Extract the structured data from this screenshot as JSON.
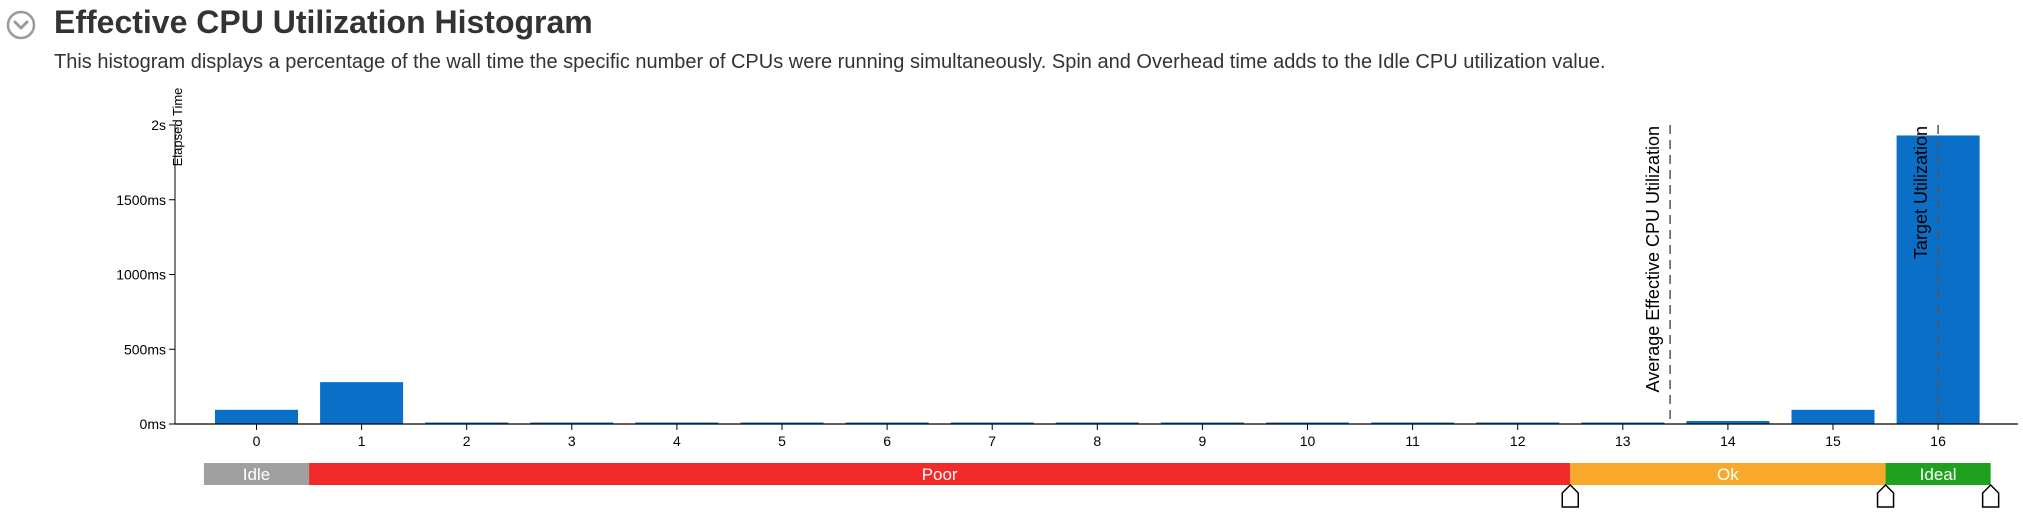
{
  "header": {
    "title": "Effective CPU Utilization Histogram",
    "description": "This histogram displays a percentage of the wall time the specific number of CPUs were running simultaneously. Spin and Overhead time adds to the Idle CPU utilization value."
  },
  "chart_data": {
    "type": "bar",
    "ylabel": "Elapsed Time",
    "y_unit": "ms",
    "ylim": [
      0,
      2000
    ],
    "y_ticks": [
      {
        "value": 0,
        "label": "0ms"
      },
      {
        "value": 500,
        "label": "500ms"
      },
      {
        "value": 1000,
        "label": "1000ms"
      },
      {
        "value": 1500,
        "label": "1500ms"
      },
      {
        "value": 2000,
        "label": "2s"
      }
    ],
    "categories": [
      "0",
      "1",
      "2",
      "3",
      "4",
      "5",
      "6",
      "7",
      "8",
      "9",
      "10",
      "11",
      "12",
      "13",
      "14",
      "15",
      "16"
    ],
    "values": [
      95,
      280,
      5,
      5,
      5,
      5,
      5,
      5,
      5,
      5,
      5,
      5,
      5,
      5,
      20,
      95,
      1930
    ],
    "bar_color": "#0a6fc7",
    "markers": [
      {
        "label": "Average Effective CPU Utilization",
        "x": 13.45
      },
      {
        "label": "Target Utilization",
        "x": 16
      }
    ],
    "zones": [
      {
        "label": "Idle",
        "from": -0.5,
        "to": 0.5,
        "color": "#a0a0a0"
      },
      {
        "label": "Poor",
        "from": 0.5,
        "to": 12.5,
        "color": "#f22a2a"
      },
      {
        "label": "Ok",
        "from": 12.5,
        "to": 15.5,
        "color": "#f8a82a"
      },
      {
        "label": "Ideal",
        "from": 15.5,
        "to": 16.5,
        "color": "#1ea21e"
      }
    ],
    "zone_handles": [
      12.5,
      15.5,
      16.5
    ]
  }
}
